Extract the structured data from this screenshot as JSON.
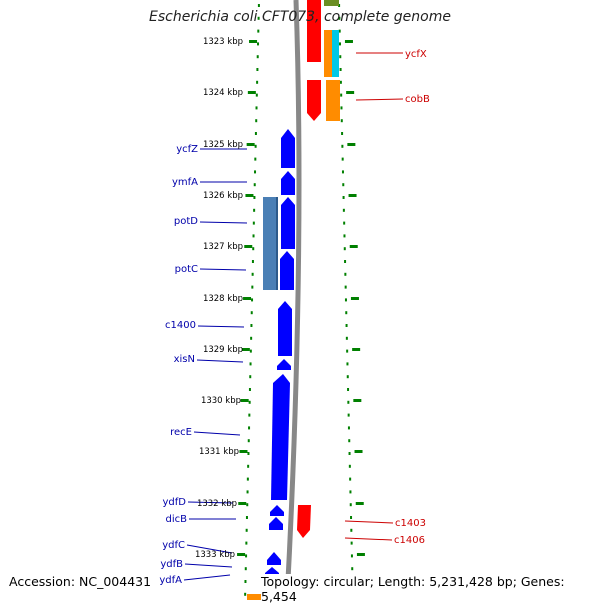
{
  "title": "Escherichia coli CFT073, complete genome",
  "accession": "Accession: NC_004431",
  "topology": "Topology: circular; Length: 5,231,428 bp; Genes: 5,454",
  "kbp_labels": [
    "1323 kbp",
    "1324 kbp",
    "1325 kbp",
    "1326 kbp",
    "1327 kbp",
    "1328 kbp",
    "1329 kbp",
    "1330 kbp",
    "1331 kbp",
    "1332 kbp",
    "1333 kbp"
  ],
  "left_genes": [
    "ycfZ",
    "ymfA",
    "potD",
    "potC",
    "c1400",
    "xisN",
    "recE",
    "ydfD",
    "dicB",
    "ydfC",
    "ydfB",
    "ydfA"
  ],
  "right_genes": [
    "ycfX",
    "cobB",
    "c1403",
    "c1406"
  ],
  "colors": {
    "minus_strand": "#0000ff",
    "operon": "#4a7fb5",
    "plus_strand": "#ff0000",
    "orange": "#ff8c00",
    "cyan": "#00c8e6",
    "olive": "#6b8e23",
    "backbone": "#888888",
    "ticks": "#008000",
    "left_label": "#0000aa",
    "right_label": "#cc0000"
  }
}
